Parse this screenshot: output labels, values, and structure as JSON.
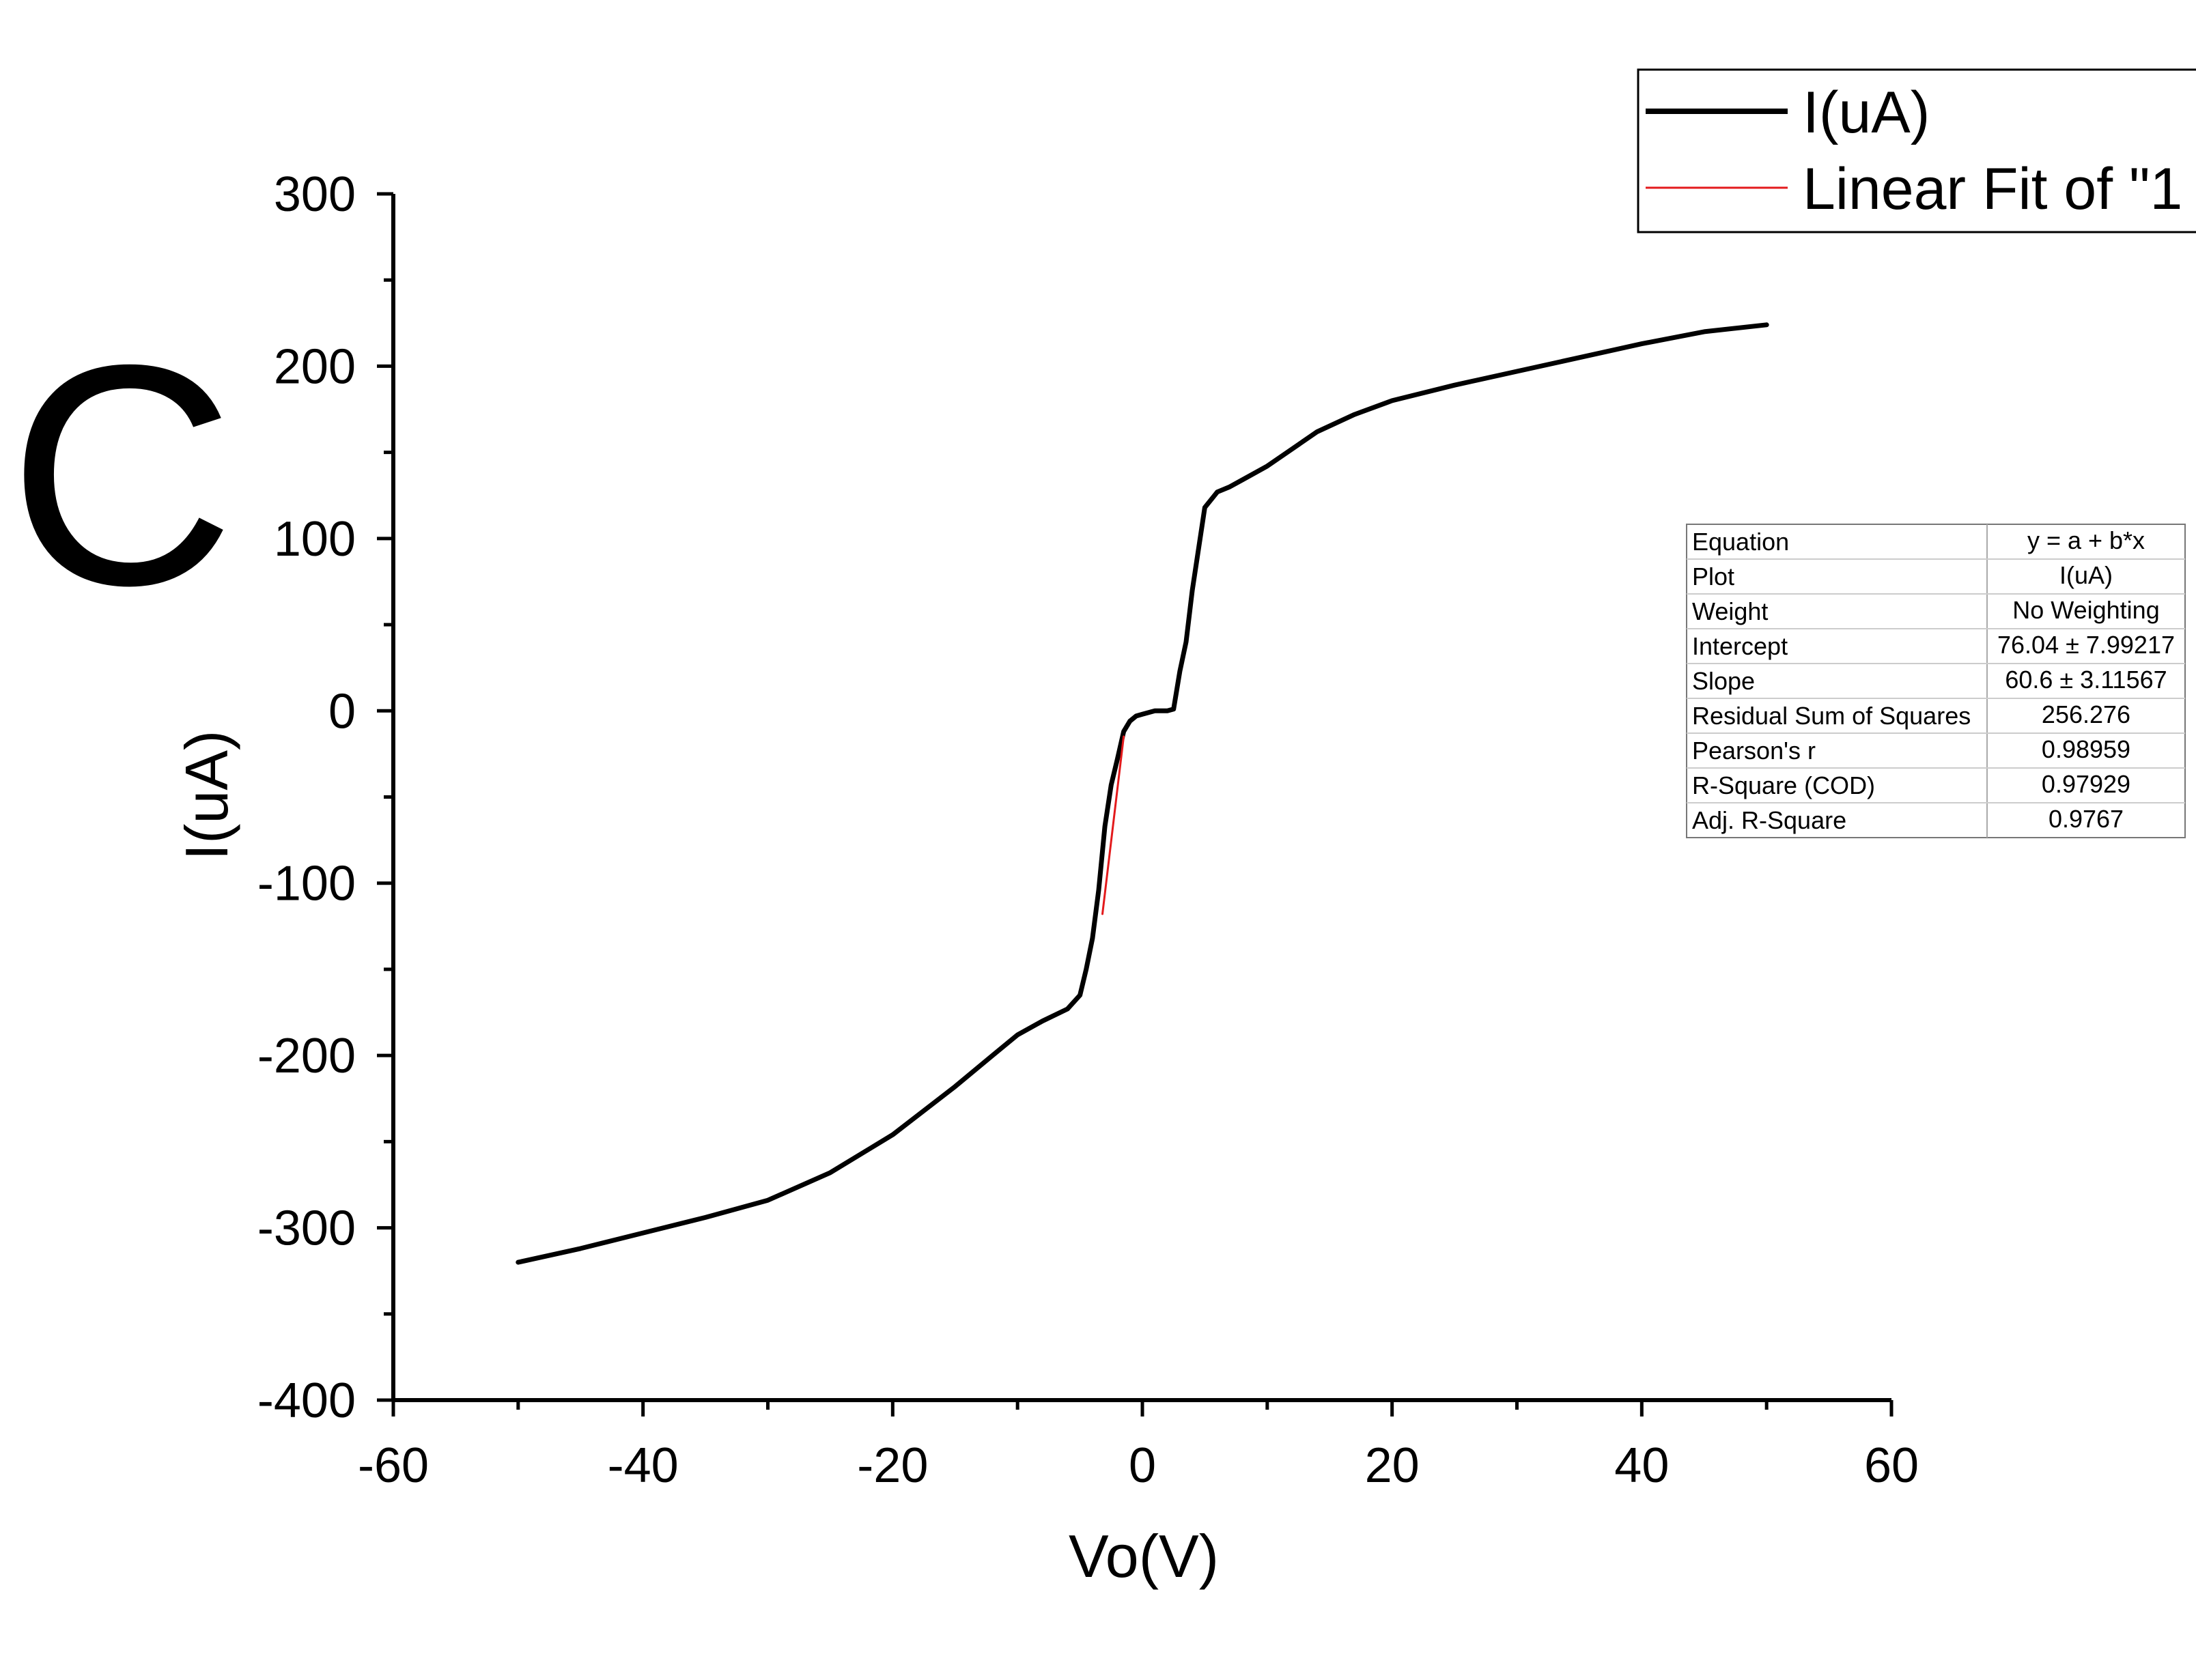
{
  "panel_label": "C",
  "legend": {
    "entries": [
      {
        "label": "I(uA)",
        "color": "#000000"
      },
      {
        "label": "Linear Fit of \"1",
        "color": "#e31a1c"
      }
    ]
  },
  "fit_table": {
    "rows": [
      {
        "key": "Equation",
        "value": "y = a + b*x"
      },
      {
        "key": "Plot",
        "value": "I(uA)"
      },
      {
        "key": "Weight",
        "value": "No Weighting"
      },
      {
        "key": "Intercept",
        "value": "76.04 ± 7.99217"
      },
      {
        "key": "Slope",
        "value": "60.6 ± 3.11567"
      },
      {
        "key": "Residual Sum of Squares",
        "value": "256.276"
      },
      {
        "key": "Pearson's r",
        "value": "0.98959"
      },
      {
        "key": "R-Square (COD)",
        "value": "0.97929"
      },
      {
        "key": "Adj. R-Square",
        "value": "0.9767"
      }
    ]
  },
  "chart_data": {
    "type": "line",
    "title": "",
    "xlabel": "Vo(V)",
    "ylabel": "I(uA)",
    "xlim": [
      -60,
      60
    ],
    "ylim": [
      -400,
      300
    ],
    "x_ticks": [
      -60,
      -40,
      -20,
      0,
      20,
      40,
      60
    ],
    "y_ticks": [
      300,
      200,
      100,
      0,
      -100,
      -200,
      -300,
      -400
    ],
    "grid": false,
    "legend_position": "top-right",
    "series": [
      {
        "name": "I(uA)",
        "color": "#000000",
        "x": [
          -50,
          -45,
          -40,
          -35,
          -30,
          -25,
          -20,
          -15,
          -12,
          -10,
          -8,
          -6,
          -5,
          -4.5,
          -4,
          -3.5,
          -3,
          -2.5,
          -2,
          -1.5,
          -1,
          -0.5,
          0,
          1,
          2,
          2.5,
          3,
          3.5,
          4,
          5,
          6,
          7,
          8,
          10,
          12,
          14,
          17,
          20,
          25,
          30,
          35,
          40,
          45,
          50
        ],
        "y": [
          -320,
          -312,
          -303,
          -294,
          -284,
          -268,
          -246,
          -218,
          -200,
          -188,
          -180,
          -173,
          -165,
          -150,
          -132,
          -104,
          -67,
          -43,
          -28,
          -12,
          -6,
          -3,
          -2,
          0,
          0,
          1,
          23,
          40,
          70,
          118,
          127,
          130,
          134,
          142,
          152,
          162,
          172,
          180,
          189,
          197,
          205,
          213,
          220,
          224
        ]
      },
      {
        "name": "Linear Fit of \"1",
        "color": "#e31a1c",
        "x": [
          -3.2,
          -1.5
        ],
        "y": [
          -117.9,
          -14.9
        ]
      }
    ]
  }
}
